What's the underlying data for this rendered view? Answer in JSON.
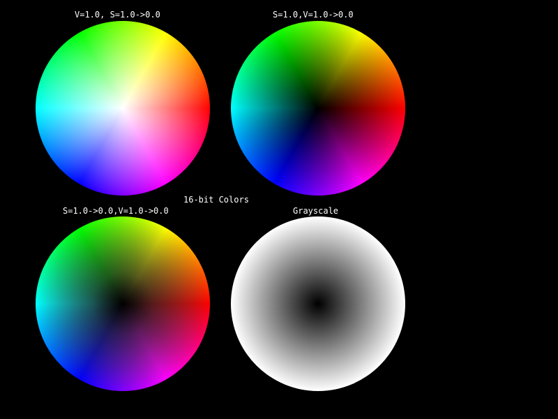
{
  "wheels": {
    "top_left": {
      "label": "V=1.0, S=1.0->0.0"
    },
    "top_right": {
      "label": "S=1.0,V=1.0->0.0"
    },
    "bottom_left": {
      "label": "S=1.0->0.0,V=1.0->0.0"
    },
    "bottom_right": {
      "label": "Grayscale"
    }
  },
  "center_label": "16-bit Colors",
  "colors": {
    "background": "#000000",
    "text": "#ffffff"
  }
}
